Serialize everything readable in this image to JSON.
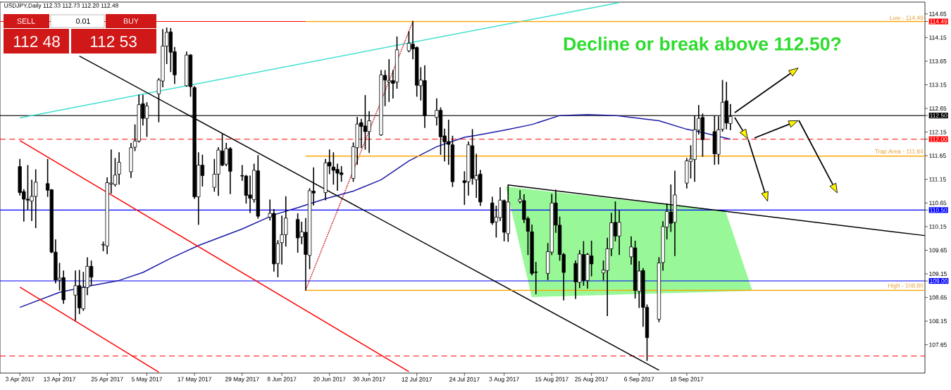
{
  "chart_data": {
    "type": "candlestick",
    "title": "USDJPY,Daily  112.33 112.73 112.20 112.48",
    "x": [
      "2017-04-03",
      "2017-04-04",
      "2017-04-05",
      "2017-04-06",
      "2017-04-07",
      "2017-04-10",
      "2017-04-11",
      "2017-04-12",
      "2017-04-13",
      "2017-04-14",
      "2017-04-17",
      "2017-04-18",
      "2017-04-19",
      "2017-04-20",
      "2017-04-21",
      "2017-04-24",
      "2017-04-25",
      "2017-04-26",
      "2017-04-27",
      "2017-04-28",
      "2017-05-01",
      "2017-05-02",
      "2017-05-03",
      "2017-05-04",
      "2017-05-05",
      "2017-05-08",
      "2017-05-09",
      "2017-05-10",
      "2017-05-11",
      "2017-05-12",
      "2017-05-15",
      "2017-05-16",
      "2017-05-17",
      "2017-05-18",
      "2017-05-19",
      "2017-05-22",
      "2017-05-23",
      "2017-05-24",
      "2017-05-25",
      "2017-05-26",
      "2017-05-29",
      "2017-05-30",
      "2017-05-31",
      "2017-06-01",
      "2017-06-02",
      "2017-06-05",
      "2017-06-06",
      "2017-06-07",
      "2017-06-08",
      "2017-06-09",
      "2017-06-12",
      "2017-06-13",
      "2017-06-14",
      "2017-06-15",
      "2017-06-16",
      "2017-06-19",
      "2017-06-20",
      "2017-06-21",
      "2017-06-22",
      "2017-06-23",
      "2017-06-26",
      "2017-06-27",
      "2017-06-28",
      "2017-06-29",
      "2017-06-30",
      "2017-07-03",
      "2017-07-04",
      "2017-07-05",
      "2017-07-06",
      "2017-07-07",
      "2017-07-10",
      "2017-07-11",
      "2017-07-12",
      "2017-07-13",
      "2017-07-14",
      "2017-07-17",
      "2017-07-18",
      "2017-07-19",
      "2017-07-20",
      "2017-07-21",
      "2017-07-24",
      "2017-07-25",
      "2017-07-26",
      "2017-07-27",
      "2017-07-28",
      "2017-07-31",
      "2017-08-01",
      "2017-08-02",
      "2017-08-03",
      "2017-08-04",
      "2017-08-07",
      "2017-08-08",
      "2017-08-09",
      "2017-08-10",
      "2017-08-11",
      "2017-08-14",
      "2017-08-15",
      "2017-08-16",
      "2017-08-17",
      "2017-08-18",
      "2017-08-21",
      "2017-08-22",
      "2017-08-23",
      "2017-08-24",
      "2017-08-25",
      "2017-08-28",
      "2017-08-29",
      "2017-08-30",
      "2017-08-31",
      "2017-09-01",
      "2017-09-04",
      "2017-09-05",
      "2017-09-06",
      "2017-09-07",
      "2017-09-08",
      "2017-09-11",
      "2017-09-12",
      "2017-09-13",
      "2017-09-14",
      "2017-09-15",
      "2017-09-18",
      "2017-09-19",
      "2017-09-20",
      "2017-09-21",
      "2017-09-22",
      "2017-09-25",
      "2017-09-26",
      "2017-09-27",
      "2017-09-28",
      "2017-09-29"
    ],
    "ohlc": [
      [
        111.42,
        111.57,
        110.82,
        110.87
      ],
      [
        110.89,
        110.93,
        110.27,
        110.73
      ],
      [
        110.73,
        111.44,
        110.52,
        110.71
      ],
      [
        110.69,
        111.13,
        110.28,
        110.79
      ],
      [
        110.79,
        111.35,
        110.13,
        111.09
      ],
      [
        111.06,
        111.57,
        110.79,
        110.92
      ],
      [
        110.93,
        110.93,
        109.6,
        109.61
      ],
      [
        109.61,
        109.87,
        108.96,
        109.02
      ],
      [
        109.02,
        109.37,
        108.81,
        109.06
      ],
      [
        109.07,
        109.21,
        108.53,
        108.6
      ],
      [
        108.7,
        109.21,
        108.17,
        108.9
      ],
      [
        108.9,
        109.22,
        108.31,
        108.43
      ],
      [
        108.41,
        109.18,
        108.38,
        108.86
      ],
      [
        108.86,
        109.49,
        108.71,
        109.31
      ],
      [
        109.31,
        109.42,
        108.91,
        109.08
      ],
      [
        109.76,
        109.82,
        109.64,
        109.77
      ],
      [
        109.74,
        111.18,
        109.58,
        111.08
      ],
      [
        111.05,
        111.77,
        110.86,
        111.07
      ],
      [
        111.04,
        111.59,
        111.01,
        111.24
      ],
      [
        111.26,
        111.71,
        111.05,
        111.51
      ],
      [
        111.31,
        111.91,
        111.19,
        111.82
      ],
      [
        111.83,
        112.3,
        111.76,
        111.96
      ],
      [
        111.96,
        112.93,
        111.94,
        112.73
      ],
      [
        112.75,
        112.93,
        112.3,
        112.44
      ],
      [
        112.44,
        112.77,
        112.06,
        112.7
      ],
      [
        112.96,
        113.28,
        112.37,
        113.25
      ],
      [
        113.23,
        114.32,
        113.11,
        113.97
      ],
      [
        113.97,
        114.35,
        113.6,
        114.26
      ],
      [
        114.27,
        114.34,
        113.43,
        113.84
      ],
      [
        113.85,
        113.94,
        113.18,
        113.36
      ],
      [
        113.13,
        113.84,
        113.12,
        113.78
      ],
      [
        113.78,
        113.79,
        112.91,
        113.11
      ],
      [
        113.09,
        113.11,
        110.75,
        110.78
      ],
      [
        110.78,
        111.71,
        110.2,
        111.45
      ],
      [
        111.45,
        111.66,
        111.01,
        111.23
      ],
      [
        110.98,
        111.57,
        110.9,
        111.26
      ],
      [
        111.26,
        111.82,
        110.81,
        111.77
      ],
      [
        111.75,
        112.11,
        111.44,
        111.45
      ],
      [
        111.47,
        111.91,
        111.44,
        111.8
      ],
      [
        111.8,
        111.82,
        110.85,
        111.32
      ],
      [
        111.23,
        111.44,
        111.13,
        111.22
      ],
      [
        111.22,
        111.23,
        110.65,
        110.81
      ],
      [
        110.82,
        111.22,
        110.45,
        110.75
      ],
      [
        110.72,
        111.47,
        110.67,
        111.34
      ],
      [
        111.33,
        111.65,
        110.33,
        110.37
      ],
      [
        110.35,
        110.71,
        110.29,
        110.43
      ],
      [
        110.43,
        110.51,
        109.21,
        109.36
      ],
      [
        109.37,
        109.85,
        109.09,
        109.79
      ],
      [
        109.81,
        110.37,
        109.36,
        109.98
      ],
      [
        109.98,
        110.78,
        109.74,
        110.33
      ],
      [
        110.3,
        110.42,
        109.61,
        109.91
      ],
      [
        109.93,
        110.24,
        109.79,
        110.04
      ],
      [
        110.03,
        110.32,
        108.81,
        109.56
      ],
      [
        109.54,
        110.95,
        109.26,
        110.91
      ],
      [
        110.9,
        111.39,
        110.61,
        110.86
      ],
      [
        110.87,
        111.57,
        110.72,
        111.5
      ],
      [
        111.51,
        111.77,
        111.27,
        111.43
      ],
      [
        111.41,
        111.71,
        111.05,
        111.34
      ],
      [
        111.36,
        111.47,
        110.92,
        111.28
      ],
      [
        111.29,
        111.42,
        111.11,
        111.25
      ],
      [
        111.17,
        111.92,
        111.11,
        111.84
      ],
      [
        111.82,
        112.46,
        111.47,
        112.32
      ],
      [
        112.35,
        112.42,
        111.82,
        112.27
      ],
      [
        112.28,
        112.92,
        111.79,
        112.16
      ],
      [
        112.16,
        112.58,
        111.72,
        112.39
      ],
      [
        112.09,
        113.45,
        112.08,
        113.36
      ],
      [
        113.35,
        113.45,
        112.71,
        113.25
      ],
      [
        113.21,
        113.68,
        112.8,
        113.24
      ],
      [
        113.24,
        113.45,
        112.87,
        113.18
      ],
      [
        113.21,
        114.16,
        113.08,
        113.89
      ],
      [
        113.87,
        114.27,
        113.85,
        114.03
      ],
      [
        114.01,
        114.49,
        113.7,
        113.91
      ],
      [
        113.94,
        113.95,
        112.91,
        113.14
      ],
      [
        113.13,
        113.51,
        112.83,
        113.25
      ],
      [
        113.24,
        113.55,
        112.25,
        112.5
      ],
      [
        112.46,
        112.85,
        112.3,
        112.61
      ],
      [
        112.61,
        112.66,
        111.68,
        112.05
      ],
      [
        112.07,
        112.21,
        111.54,
        111.94
      ],
      [
        111.95,
        112.4,
        111.47,
        111.89
      ],
      [
        111.88,
        112.06,
        111.0,
        111.1
      ],
      [
        111.12,
        111.31,
        110.62,
        111.08
      ],
      [
        111.1,
        111.94,
        110.82,
        111.88
      ],
      [
        111.86,
        112.2,
        111.05,
        111.17
      ],
      [
        111.14,
        111.68,
        110.77,
        111.23
      ],
      [
        111.26,
        111.34,
        110.6,
        110.67
      ],
      [
        110.65,
        110.77,
        110.2,
        110.23
      ],
      [
        110.25,
        110.58,
        109.93,
        110.35
      ],
      [
        110.34,
        110.97,
        110.28,
        110.71
      ],
      [
        110.7,
        110.71,
        109.85,
        110.03
      ],
      [
        110.0,
        111.03,
        109.84,
        110.67
      ],
      [
        110.68,
        110.91,
        110.65,
        110.73
      ],
      [
        110.7,
        110.82,
        110.24,
        110.3
      ],
      [
        110.32,
        110.35,
        109.56,
        110.05
      ],
      [
        110.04,
        110.18,
        109.13,
        109.16
      ],
      [
        109.19,
        109.39,
        108.73,
        109.18
      ],
      [
        109.16,
        109.79,
        109.03,
        109.62
      ],
      [
        109.61,
        110.83,
        109.56,
        110.65
      ],
      [
        110.65,
        110.92,
        110.03,
        110.18
      ],
      [
        110.18,
        110.35,
        109.44,
        109.56
      ],
      [
        109.56,
        109.58,
        108.6,
        109.18
      ],
      [
        109.37,
        109.42,
        108.63,
        108.98
      ],
      [
        108.97,
        109.64,
        108.86,
        109.57
      ],
      [
        109.56,
        109.83,
        108.91,
        109.01
      ],
      [
        109.01,
        109.58,
        108.85,
        109.56
      ],
      [
        109.53,
        109.84,
        109.11,
        109.36
      ],
      [
        109.17,
        109.42,
        109.02,
        109.23
      ],
      [
        109.22,
        109.9,
        108.27,
        109.68
      ],
      [
        109.68,
        110.43,
        109.54,
        110.23
      ],
      [
        110.24,
        110.67,
        109.85,
        109.95
      ],
      [
        109.95,
        110.48,
        109.56,
        110.24
      ],
      [
        109.51,
        109.93,
        109.36,
        109.72
      ],
      [
        109.7,
        109.84,
        108.64,
        108.8
      ],
      [
        108.78,
        109.41,
        108.44,
        109.21
      ],
      [
        109.22,
        109.26,
        108.04,
        108.44
      ],
      [
        108.44,
        108.49,
        107.32,
        107.8
      ],
      [
        108.19,
        109.49,
        108.14,
        109.38
      ],
      [
        109.39,
        110.25,
        109.23,
        110.15
      ],
      [
        110.14,
        110.63,
        109.89,
        110.47
      ],
      [
        110.46,
        111.03,
        110.05,
        110.22
      ],
      [
        110.24,
        111.32,
        109.54,
        110.82
      ],
      [
        111.07,
        111.59,
        110.97,
        111.54
      ],
      [
        111.53,
        111.86,
        111.18,
        111.58
      ],
      [
        111.57,
        112.49,
        111.11,
        112.2
      ],
      [
        112.19,
        112.71,
        112.11,
        112.44
      ],
      [
        112.46,
        112.53,
        111.64,
        111.99
      ],
      [
        112.16,
        112.49,
        111.47,
        111.69
      ],
      [
        111.68,
        112.47,
        111.48,
        112.2
      ],
      [
        112.21,
        113.24,
        112.17,
        112.78
      ],
      [
        112.81,
        113.2,
        112.22,
        112.34
      ],
      [
        112.33,
        112.73,
        112.2,
        112.48
      ]
    ],
    "xlim": [
      "2017-03-29",
      "2017-11-17"
    ],
    "xticks": [
      {
        "value": "2017-04-03",
        "label": "3 Apr 2017"
      },
      {
        "value": "2017-04-13",
        "label": "13 Apr 2017"
      },
      {
        "value": "2017-04-25",
        "label": "25 Apr 2017"
      },
      {
        "value": "2017-05-05",
        "label": "5 May 2017"
      },
      {
        "value": "2017-05-17",
        "label": "17 May 2017"
      },
      {
        "value": "2017-05-29",
        "label": "29 May 2017"
      },
      {
        "value": "2017-06-08",
        "label": "8 Jun 2017"
      },
      {
        "value": "2017-06-20",
        "label": "20 Jun 2017"
      },
      {
        "value": "2017-06-30",
        "label": "30 Jun 2017"
      },
      {
        "value": "2017-07-12",
        "label": "12 Jul 2017"
      },
      {
        "value": "2017-07-24",
        "label": "24 Jul 2017"
      },
      {
        "value": "2017-08-03",
        "label": "3 Aug 2017"
      },
      {
        "value": "2017-08-15",
        "label": "15 Aug 2017"
      },
      {
        "value": "2017-08-25",
        "label": "25 Aug 2017"
      },
      {
        "value": "2017-09-06",
        "label": "6 Sep 2017"
      },
      {
        "value": "2017-09-18",
        "label": "18 Sep 2017"
      }
    ],
    "ylim": [
      107.05,
      114.9
    ],
    "yticks": [
      114.65,
      114.49,
      114.15,
      113.65,
      113.15,
      112.65,
      {
        "value": 112.5,
        "label": "112.50"
      },
      112.15,
      {
        "value": 112.0,
        "label": "112.00"
      },
      111.65,
      111.15,
      110.65,
      {
        "value": 110.5,
        "label": "110.50"
      },
      110.15,
      109.65,
      109.15,
      {
        "value": 109.0,
        "label": "109.00"
      },
      108.65,
      108.15,
      107.65
    ],
    "ref_lines": [
      {
        "axis": "y",
        "value": 114.49,
        "color": "#ff0000"
      },
      {
        "axis": "y",
        "value": 112.5,
        "color": "#000000"
      },
      {
        "axis": "y",
        "value": 112.0,
        "color": "#ff0000",
        "line_style": "dashed"
      },
      {
        "axis": "y",
        "value": 110.5,
        "color": "#0000ff"
      },
      {
        "axis": "y",
        "value": 109.0,
        "color": "#0000ff"
      },
      {
        "axis": "y",
        "value": 107.41,
        "color": "#ff0000",
        "line_style": "dashed"
      }
    ],
    "series": [
      {
        "type": "line",
        "color": "#1a1aa8",
        "x": [
          "2017-04-03",
          "2017-04-13",
          "2017-04-21",
          "2017-04-28",
          "2017-05-04",
          "2017-05-11",
          "2017-05-18",
          "2017-05-29",
          "2017-06-06",
          "2017-06-12",
          "2017-06-19",
          "2017-06-26",
          "2017-07-03",
          "2017-07-10",
          "2017-07-17",
          "2017-07-24",
          "2017-07-27",
          "2017-08-03",
          "2017-08-10",
          "2017-08-17",
          "2017-08-24",
          "2017-08-31",
          "2017-09-04",
          "2017-09-11",
          "2017-09-18",
          "2017-09-22",
          "2017-09-29"
        ],
        "values": [
          108.44,
          108.76,
          108.9,
          109.01,
          109.18,
          109.48,
          109.75,
          110.1,
          110.4,
          110.55,
          110.74,
          110.9,
          111.14,
          111.54,
          111.84,
          112.04,
          112.08,
          112.19,
          112.31,
          112.5,
          112.52,
          112.5,
          112.46,
          112.39,
          112.21,
          112.14,
          112.0
        ]
      },
      {
        "type": "line",
        "color": "#40e0d0",
        "x": [
          "2017-04-03",
          "2017-09-01"
        ],
        "values": [
          112.45,
          114.89
        ]
      },
      {
        "type": "line",
        "color": "#000000",
        "x": [
          "2017-04-18",
          "2017-09-11"
        ],
        "values": [
          113.76,
          107.11
        ]
      },
      {
        "type": "line",
        "color": "#ff0000",
        "x": [
          "2017-04-03",
          "2017-07-10"
        ],
        "values": [
          111.97,
          107.08
        ]
      },
      {
        "type": "line",
        "color": "#ff0000",
        "x": [
          "2017-04-03",
          "2017-05-08"
        ],
        "values": [
          108.87,
          107.07
        ]
      },
      {
        "type": "line",
        "color": "#000000",
        "x": [
          "2017-08-04",
          "2017-11-17"
        ],
        "values": [
          111.03,
          109.96
        ]
      },
      {
        "type": "line",
        "color": "#c00000",
        "line_style": "dotted",
        "x": [
          "2017-06-14",
          "2017-07-11"
        ],
        "values": [
          108.81,
          114.49
        ]
      },
      {
        "type": "line",
        "color": "#ffa500",
        "x": [
          "2017-06-14",
          "2017-11-17"
        ],
        "values": [
          114.49,
          114.49
        ]
      },
      {
        "type": "line",
        "color": "#ffa500",
        "x": [
          "2017-06-14",
          "2017-11-17"
        ],
        "values": [
          111.64,
          111.64
        ]
      },
      {
        "type": "line",
        "color": "#ffa500",
        "x": [
          "2017-06-14",
          "2017-11-17"
        ],
        "values": [
          108.8,
          108.8
        ]
      }
    ],
    "annotations": [
      "Decline or break above 112.50?",
      "SELL",
      "0.01",
      "BUY",
      "112 48",
      "112 53",
      {
        "text": "Low - 114.49",
        "x": "2017-11-17",
        "y": 114.49
      },
      {
        "text": "Trap Area - 111.64",
        "x": "2017-11-17",
        "y": 111.64
      },
      {
        "text": "High - 108.80",
        "x": "2017-11-17",
        "y": 108.8
      }
    ]
  }
}
